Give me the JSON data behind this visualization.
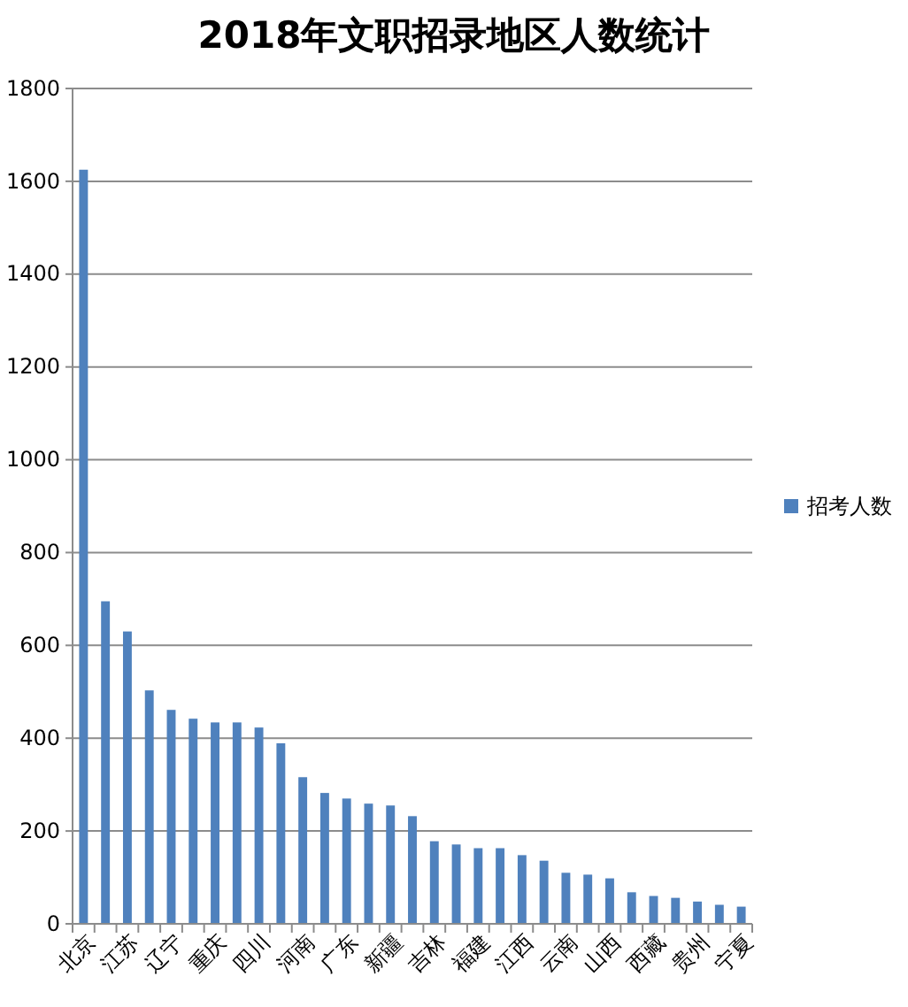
{
  "chart_data": {
    "type": "bar",
    "title": "2018年文职招录地区人数统计",
    "categories": [
      "北京",
      null,
      "江苏",
      null,
      "辽宁",
      null,
      "重庆",
      null,
      "四川",
      null,
      "河南",
      null,
      "广东",
      null,
      "新疆",
      null,
      "吉林",
      null,
      "福建",
      null,
      "江西",
      null,
      "云南",
      null,
      "山西",
      null,
      "西藏",
      null,
      "贵州",
      null,
      "宁夏"
    ],
    "series": [
      {
        "name": "招考人数",
        "color": "#4f81bd",
        "values": [
          1625,
          695,
          630,
          503,
          461,
          442,
          434,
          434,
          423,
          389,
          316,
          282,
          270,
          259,
          255,
          232,
          178,
          171,
          163,
          163,
          148,
          136,
          110,
          106,
          98,
          68,
          60,
          56,
          48,
          41,
          37
        ]
      }
    ],
    "ylim": [
      0,
      1800
    ],
    "yticks": [
      0,
      200,
      400,
      600,
      800,
      1000,
      1200,
      1400,
      1600,
      1800
    ],
    "grid": "y",
    "legend": "right"
  }
}
